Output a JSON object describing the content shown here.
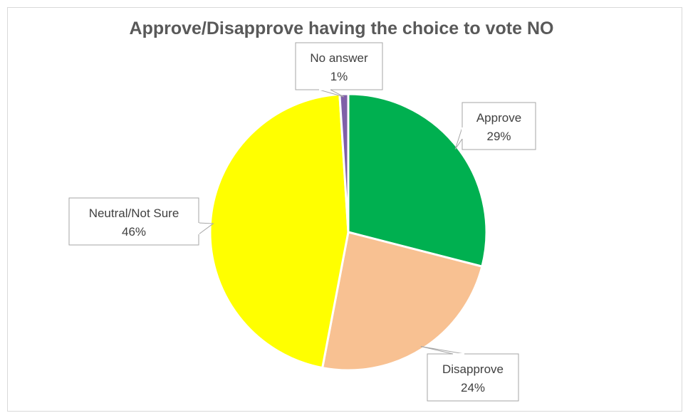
{
  "chart_data": {
    "type": "pie",
    "title": "Approve/Disapprove having the choice to vote NO",
    "slices": [
      {
        "label": "Approve",
        "value": 29,
        "display": "29%",
        "color": "#00b050"
      },
      {
        "label": "Disapprove",
        "value": 24,
        "display": "24%",
        "color": "#f8c192"
      },
      {
        "label": "Neutral/Not Sure",
        "value": 46,
        "display": "46%",
        "color": "#ffff00"
      },
      {
        "label": "No answer",
        "value": 1,
        "display": "1%",
        "color": "#7f5fa8"
      }
    ],
    "start_angle": "12 o'clock",
    "direction": "clockwise",
    "labels": "callouts with category name and percentage",
    "legend": "none"
  }
}
